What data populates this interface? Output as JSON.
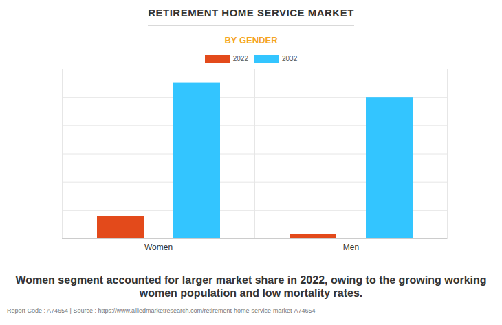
{
  "chart_data": {
    "type": "bar",
    "title": "RETIREMENT HOME SERVICE MARKET",
    "subtitle": "BY GENDER",
    "categories": [
      "Women",
      "Men"
    ],
    "series": [
      {
        "name": "2022",
        "color": "#e34a1b",
        "values": [
          0.8,
          0.17
        ]
      },
      {
        "name": "2032",
        "color": "#33c5ff",
        "values": [
          5.5,
          5.0
        ]
      }
    ],
    "ylim": [
      0,
      6
    ],
    "yticks": [
      0,
      1,
      2,
      3,
      4,
      5,
      6
    ],
    "grid": true,
    "tick_labels": "x",
    "legend": "top",
    "caption": "Women segment accounted for larger market share in 2022, owing to the growing working women population and low mortality rates.",
    "source": "Report Code : A74654  |  Source : https://www.alliedmarketresearch.com/retirement-home-service-market-A74654"
  }
}
